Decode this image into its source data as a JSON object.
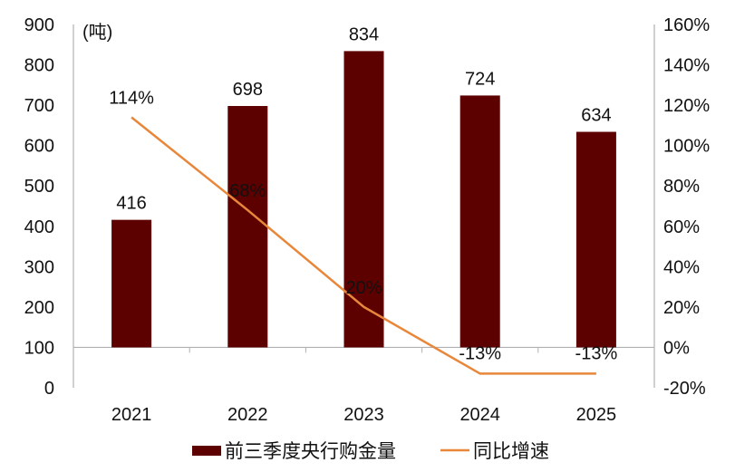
{
  "chart_data": {
    "type": "bar+line",
    "unit_label": "(吨)",
    "categories": [
      "2021",
      "2022",
      "2023",
      "2024",
      "2025"
    ],
    "series": [
      {
        "name": "前三季度央行购金量",
        "type": "bar",
        "axis": "left",
        "values": [
          416,
          698,
          834,
          724,
          634
        ],
        "labels": [
          "416",
          "698",
          "834",
          "724",
          "634"
        ],
        "color": "#5c0000"
      },
      {
        "name": "同比增速",
        "type": "line",
        "axis": "right",
        "values": [
          114,
          68,
          20,
          -13,
          -13
        ],
        "labels": [
          "114%",
          "68%",
          "20%",
          "-13%",
          "-13%"
        ],
        "color": "#e8873a"
      }
    ],
    "left_axis": {
      "range": [
        0,
        900
      ],
      "ticks": [
        "0",
        "100",
        "200",
        "300",
        "400",
        "500",
        "600",
        "700",
        "800",
        "900"
      ]
    },
    "right_axis": {
      "range": [
        -20,
        160
      ],
      "ticks": [
        "-20%",
        "0%",
        "20%",
        "40%",
        "60%",
        "80%",
        "100%",
        "120%",
        "140%",
        "160%"
      ]
    },
    "legend": "bottom",
    "grid": false
  }
}
